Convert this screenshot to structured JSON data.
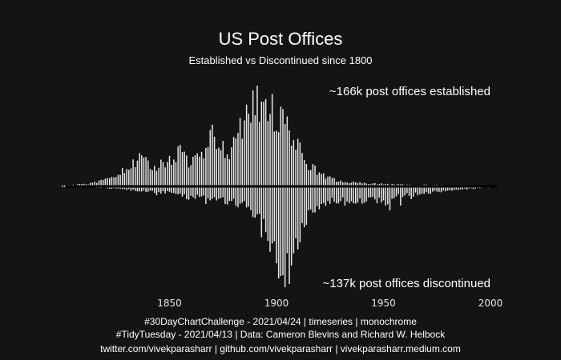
{
  "colors": {
    "background": "#141414",
    "bar": "#e8e8e8",
    "baseline": "#000000",
    "text": "#ffffff"
  },
  "chart_data": {
    "type": "bar",
    "title": "US Post Offices",
    "subtitle": "Established vs Discontinued since 1800",
    "annotation_top": "~166k post offices established",
    "annotation_bottom": "~137k post offices discontinued",
    "xlim": [
      1800,
      2003
    ],
    "x_ticks": [
      1850,
      1900,
      1950,
      2000
    ],
    "grid": false,
    "legend": "none",
    "series": [
      {
        "name": "established",
        "keyframes": [
          [
            1800,
            1
          ],
          [
            1812,
            3
          ],
          [
            1820,
            8
          ],
          [
            1826,
            16
          ],
          [
            1830,
            20
          ],
          [
            1836,
            35
          ],
          [
            1840,
            28
          ],
          [
            1845,
            25
          ],
          [
            1850,
            32
          ],
          [
            1855,
            42
          ],
          [
            1860,
            30
          ],
          [
            1865,
            38
          ],
          [
            1870,
            62
          ],
          [
            1874,
            52
          ],
          [
            1878,
            46
          ],
          [
            1882,
            68
          ],
          [
            1886,
            92
          ],
          [
            1890,
            118
          ],
          [
            1894,
            98
          ],
          [
            1898,
            92
          ],
          [
            1902,
            80
          ],
          [
            1906,
            72
          ],
          [
            1910,
            48
          ],
          [
            1915,
            28
          ],
          [
            1920,
            16
          ],
          [
            1925,
            10
          ],
          [
            1930,
            6
          ],
          [
            1940,
            4
          ],
          [
            1950,
            3
          ],
          [
            1960,
            2
          ],
          [
            1970,
            2
          ],
          [
            1985,
            1
          ],
          [
            2002,
            1
          ]
        ]
      },
      {
        "name": "discontinued",
        "keyframes": [
          [
            1800,
            0
          ],
          [
            1810,
            1
          ],
          [
            1820,
            2
          ],
          [
            1830,
            4
          ],
          [
            1840,
            6
          ],
          [
            1850,
            8
          ],
          [
            1855,
            10
          ],
          [
            1860,
            14
          ],
          [
            1865,
            12
          ],
          [
            1870,
            16
          ],
          [
            1875,
            18
          ],
          [
            1880,
            20
          ],
          [
            1885,
            24
          ],
          [
            1890,
            38
          ],
          [
            1895,
            58
          ],
          [
            1900,
            90
          ],
          [
            1903,
            118
          ],
          [
            1905,
            112
          ],
          [
            1908,
            84
          ],
          [
            1911,
            58
          ],
          [
            1915,
            36
          ],
          [
            1920,
            24
          ],
          [
            1925,
            20
          ],
          [
            1930,
            18
          ],
          [
            1935,
            22
          ],
          [
            1940,
            18
          ],
          [
            1945,
            16
          ],
          [
            1950,
            20
          ],
          [
            1955,
            14
          ],
          [
            1960,
            12
          ],
          [
            1965,
            10
          ],
          [
            1970,
            8
          ],
          [
            1975,
            7
          ],
          [
            1980,
            5
          ],
          [
            1990,
            3
          ],
          [
            2002,
            1
          ]
        ]
      }
    ],
    "spikes": {
      "established": [
        [
          1838,
          36
        ],
        [
          1871,
          62
        ],
        [
          1889,
          120
        ],
        [
          1891,
          126
        ],
        [
          1893,
          106
        ]
      ],
      "discontinued": [
        [
          1844,
          11
        ],
        [
          1858,
          16
        ],
        [
          1867,
          22
        ],
        [
          1896,
          68
        ],
        [
          1902,
          112
        ],
        [
          1904,
          126
        ],
        [
          1906,
          122
        ],
        [
          1953,
          30
        ],
        [
          1958,
          24
        ],
        [
          1963,
          16
        ]
      ]
    },
    "caption": [
      "#30DayChartChallenge - 2021/04/24 | timeseries | monochrome",
      "#TidyTuesday - 2021/04/13 | Data: Cameron Blevins and Richard W. Helbock",
      "twitter.com/vivekparasharr | github.com/vivekparasharr | vivekparasharr.medium.com"
    ]
  }
}
